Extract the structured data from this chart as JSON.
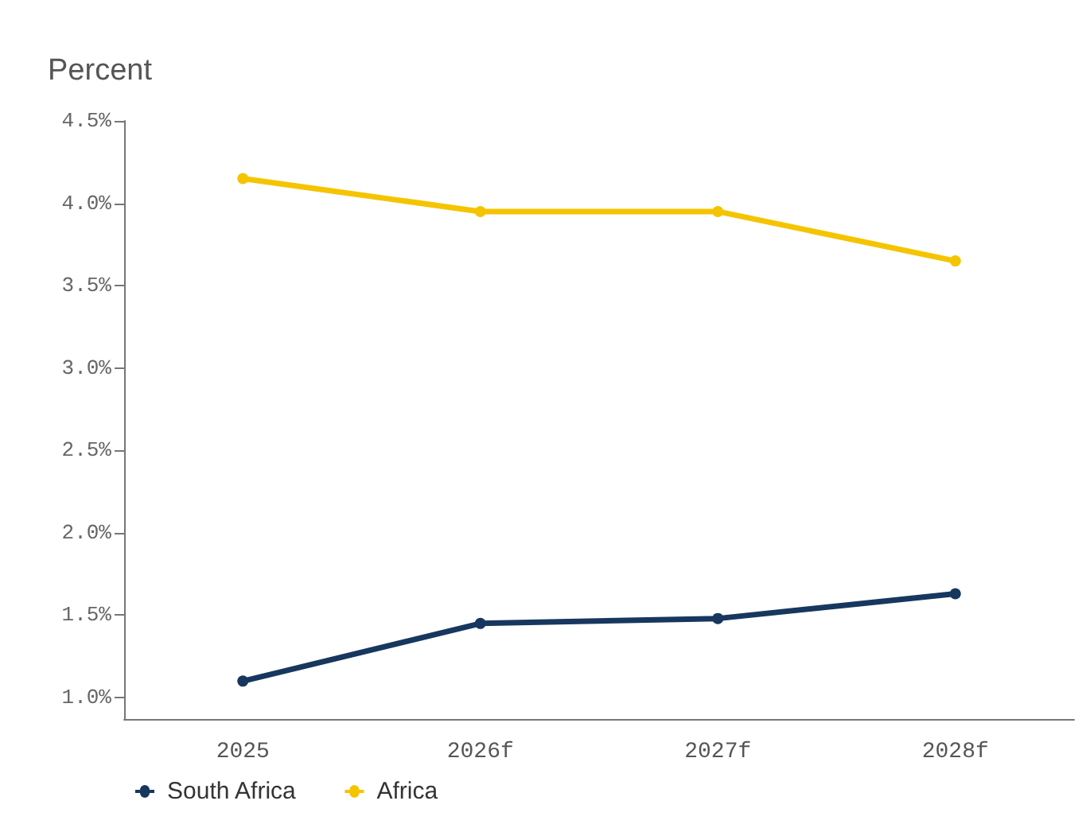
{
  "chart_data": {
    "type": "line",
    "title": "Percent",
    "categories": [
      "2025",
      "2026f",
      "2027f",
      "2028f"
    ],
    "series": [
      {
        "name": "South Africa",
        "color": "#17375e",
        "values": [
          1.1,
          1.45,
          1.48,
          1.63
        ]
      },
      {
        "name": "Africa",
        "color": "#f5c400",
        "values": [
          4.15,
          3.95,
          3.95,
          3.65
        ]
      }
    ],
    "ylim": [
      0.87,
      4.5
    ],
    "yticks": [
      {
        "value": 1,
        "label": "1.0%"
      },
      {
        "value": 1.5,
        "label": "1.5%"
      },
      {
        "value": 2,
        "label": "2.0%"
      },
      {
        "value": 2.5,
        "label": "2.5%"
      },
      {
        "value": 3,
        "label": "3.0%"
      },
      {
        "value": 3.5,
        "label": "3.5%"
      },
      {
        "value": 4,
        "label": "4.0%"
      },
      {
        "value": 4.5,
        "label": "4.5%"
      }
    ],
    "grid": false,
    "legend": "bottom left",
    "marker": "circle",
    "line_style": "solid"
  }
}
